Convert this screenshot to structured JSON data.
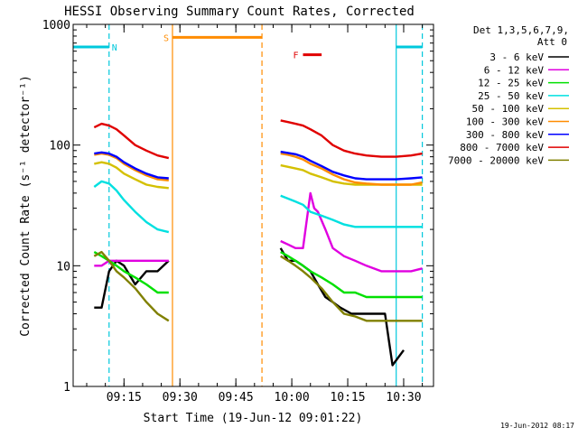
{
  "chart_data": {
    "type": "line",
    "title": "HESSI Observing Summary Count Rates, Corrected",
    "xlabel": "Start Time (19-Jun-12 09:01:22)",
    "ylabel": "Corrected Count Rate (s⁻¹ detector⁻¹)",
    "yscale": "log",
    "ylim": [
      1,
      1000
    ],
    "xlim": [
      "09:01:22",
      "10:38:00"
    ],
    "x_ticks": [
      "09:15",
      "09:30",
      "09:45",
      "10:00",
      "10:15",
      "10:30"
    ],
    "y_ticks": [
      "1",
      "10",
      "100",
      "1000"
    ],
    "legend": {
      "header": [
        "Det 1,3,5,6,7,9,",
        "Att 0"
      ],
      "placement": "right"
    },
    "footer": "19-Jun-2012 08:17",
    "series": [
      {
        "name": "3 - 6 keV",
        "color": "#000000",
        "segments": [
          {
            "x": [
              "09:07",
              "09:09",
              "09:11",
              "09:13",
              "09:15",
              "09:18",
              "09:21",
              "09:24",
              "09:27"
            ],
            "y": [
              4.5,
              4.5,
              9,
              11,
              10,
              7,
              9,
              9,
              11
            ]
          },
          {
            "x": [
              "09:57",
              "09:59",
              "10:01",
              "10:03",
              "10:05",
              "10:07",
              "10:09",
              "10:11",
              "10:13",
              "10:16",
              "10:19",
              "10:22",
              "10:25",
              "10:27",
              "10:30"
            ],
            "y": [
              14,
              11,
              11,
              10,
              9,
              7,
              5.5,
              5,
              4.5,
              4,
              4,
              4,
              4,
              1.5,
              2
            ]
          }
        ]
      },
      {
        "name": "6 - 12 keV",
        "color": "#e000e0",
        "segments": [
          {
            "x": [
              "09:07",
              "09:09",
              "09:11",
              "09:13",
              "09:15",
              "09:18",
              "09:21",
              "09:24",
              "09:27"
            ],
            "y": [
              10,
              10,
              11,
              11,
              11,
              11,
              11,
              11,
              11
            ]
          },
          {
            "x": [
              "09:57",
              "09:59",
              "10:01",
              "10:03",
              "10:05",
              "10:06",
              "10:07",
              "10:09",
              "10:11",
              "10:14",
              "10:17",
              "10:20",
              "10:24",
              "10:28",
              "10:32",
              "10:35"
            ],
            "y": [
              16,
              15,
              14,
              14,
              40,
              30,
              28,
              20,
              14,
              12,
              11,
              10,
              9,
              9,
              9,
              9.5
            ]
          }
        ]
      },
      {
        "name": "12 - 25 keV",
        "color": "#00e000",
        "segments": [
          {
            "x": [
              "09:07",
              "09:09",
              "09:11",
              "09:13",
              "09:15",
              "09:18",
              "09:21",
              "09:24",
              "09:27"
            ],
            "y": [
              13,
              12,
              11,
              10,
              9,
              8,
              7,
              6,
              6
            ]
          },
          {
            "x": [
              "09:57",
              "09:59",
              "10:01",
              "10:03",
              "10:05",
              "10:08",
              "10:11",
              "10:14",
              "10:17",
              "10:20",
              "10:24",
              "10:28",
              "10:32",
              "10:35"
            ],
            "y": [
              13,
              12,
              11,
              10,
              9,
              8,
              7,
              6,
              6,
              5.5,
              5.5,
              5.5,
              5.5,
              5.5
            ]
          }
        ]
      },
      {
        "name": "25 - 50 keV",
        "color": "#00e0e0",
        "segments": [
          {
            "x": [
              "09:07",
              "09:09",
              "09:11",
              "09:13",
              "09:15",
              "09:18",
              "09:21",
              "09:24",
              "09:27"
            ],
            "y": [
              45,
              50,
              48,
              42,
              35,
              28,
              23,
              20,
              19
            ]
          },
          {
            "x": [
              "09:57",
              "09:59",
              "10:01",
              "10:03",
              "10:05",
              "10:08",
              "10:11",
              "10:14",
              "10:17",
              "10:20",
              "10:24",
              "10:28",
              "10:32",
              "10:35"
            ],
            "y": [
              38,
              36,
              34,
              32,
              28,
              26,
              24,
              22,
              21,
              21,
              21,
              21,
              21,
              21
            ]
          }
        ]
      },
      {
        "name": "50 - 100 keV",
        "color": "#d4c000",
        "segments": [
          {
            "x": [
              "09:07",
              "09:09",
              "09:11",
              "09:13",
              "09:15",
              "09:18",
              "09:21",
              "09:24",
              "09:27"
            ],
            "y": [
              70,
              72,
              70,
              65,
              58,
              52,
              47,
              45,
              44
            ]
          },
          {
            "x": [
              "09:57",
              "09:59",
              "10:01",
              "10:03",
              "10:05",
              "10:08",
              "10:11",
              "10:14",
              "10:17",
              "10:20",
              "10:24",
              "10:28",
              "10:32",
              "10:35"
            ],
            "y": [
              68,
              66,
              64,
              62,
              58,
              54,
              50,
              48,
              47,
              47,
              47,
              47,
              47,
              47
            ]
          }
        ]
      },
      {
        "name": "100 - 300 keV",
        "color": "#ff8c00",
        "segments": [
          {
            "x": [
              "09:07",
              "09:09",
              "09:11",
              "09:13",
              "09:15",
              "09:18",
              "09:21",
              "09:24",
              "09:27"
            ],
            "y": [
              83,
              85,
              83,
              78,
              70,
              62,
              56,
              52,
              51
            ]
          },
          {
            "x": [
              "09:57",
              "09:59",
              "10:01",
              "10:03",
              "10:05",
              "10:08",
              "10:11",
              "10:14",
              "10:17",
              "10:20",
              "10:24",
              "10:28",
              "10:32",
              "10:35"
            ],
            "y": [
              85,
              83,
              80,
              76,
              70,
              64,
              57,
              52,
              49,
              48,
              47,
              47,
              47,
              49
            ]
          }
        ]
      },
      {
        "name": "300 - 800 keV",
        "color": "#0000ff",
        "segments": [
          {
            "x": [
              "09:07",
              "09:09",
              "09:11",
              "09:13",
              "09:15",
              "09:18",
              "09:21",
              "09:24",
              "09:27"
            ],
            "y": [
              85,
              87,
              85,
              80,
              72,
              64,
              58,
              54,
              53
            ]
          },
          {
            "x": [
              "09:57",
              "09:59",
              "10:01",
              "10:03",
              "10:05",
              "10:08",
              "10:11",
              "10:14",
              "10:17",
              "10:20",
              "10:24",
              "10:28",
              "10:32",
              "10:35"
            ],
            "y": [
              88,
              86,
              84,
              80,
              74,
              67,
              60,
              56,
              53,
              52,
              52,
              52,
              53,
              54
            ]
          }
        ]
      },
      {
        "name": "800 - 7000 keV",
        "color": "#e00000",
        "segments": [
          {
            "x": [
              "09:07",
              "09:09",
              "09:11",
              "09:13",
              "09:15",
              "09:18",
              "09:21",
              "09:24",
              "09:27"
            ],
            "y": [
              140,
              150,
              145,
              135,
              120,
              100,
              90,
              82,
              78
            ]
          },
          {
            "x": [
              "09:57",
              "09:59",
              "10:01",
              "10:03",
              "10:05",
              "10:08",
              "10:11",
              "10:14",
              "10:17",
              "10:20",
              "10:24",
              "10:28",
              "10:32",
              "10:35"
            ],
            "y": [
              160,
              155,
              150,
              145,
              135,
              120,
              100,
              90,
              85,
              82,
              80,
              80,
              82,
              85
            ]
          }
        ]
      },
      {
        "name": "7000 - 20000 keV",
        "color": "#808000",
        "segments": [
          {
            "x": [
              "09:07",
              "09:09",
              "09:11",
              "09:13",
              "09:15",
              "09:18",
              "09:21",
              "09:24",
              "09:27"
            ],
            "y": [
              12,
              13,
              11,
              9,
              8,
              6.5,
              5,
              4,
              3.5
            ]
          },
          {
            "x": [
              "09:57",
              "09:59",
              "10:01",
              "10:03",
              "10:05",
              "10:08",
              "10:11",
              "10:14",
              "10:17",
              "10:20",
              "10:24",
              "10:28",
              "10:32",
              "10:35"
            ],
            "y": [
              12,
              11,
              10,
              9,
              8,
              6.5,
              5,
              4,
              3.8,
              3.5,
              3.5,
              3.5,
              3.5,
              3.5
            ]
          }
        ]
      }
    ],
    "markers": [
      {
        "label": "N",
        "color": "#00c8dc",
        "time": "09:11",
        "style": "dashed"
      },
      {
        "label": "",
        "color": "#00c8dc",
        "time": "10:28",
        "style": "solid"
      },
      {
        "label": "",
        "color": "#00c8dc",
        "time": "10:35",
        "style": "dashed"
      },
      {
        "label": "S",
        "color": "#ff8c00",
        "time": "09:28",
        "style": "solid"
      },
      {
        "label": "",
        "color": "#ff8c00",
        "time": "09:52",
        "style": "dashed"
      }
    ],
    "bars": [
      {
        "label": "N",
        "color": "#00c8dc",
        "start": "09:01:22",
        "end": "09:11",
        "y": 650
      },
      {
        "label": "",
        "color": "#00c8dc",
        "start": "10:28",
        "end": "10:35",
        "y": 650
      },
      {
        "label": "S",
        "color": "#ff8c00",
        "start": "09:28",
        "end": "09:52",
        "y": 780
      },
      {
        "label": "F",
        "color": "#e00000",
        "start": "10:03",
        "end": "10:08",
        "y": 560
      }
    ]
  }
}
